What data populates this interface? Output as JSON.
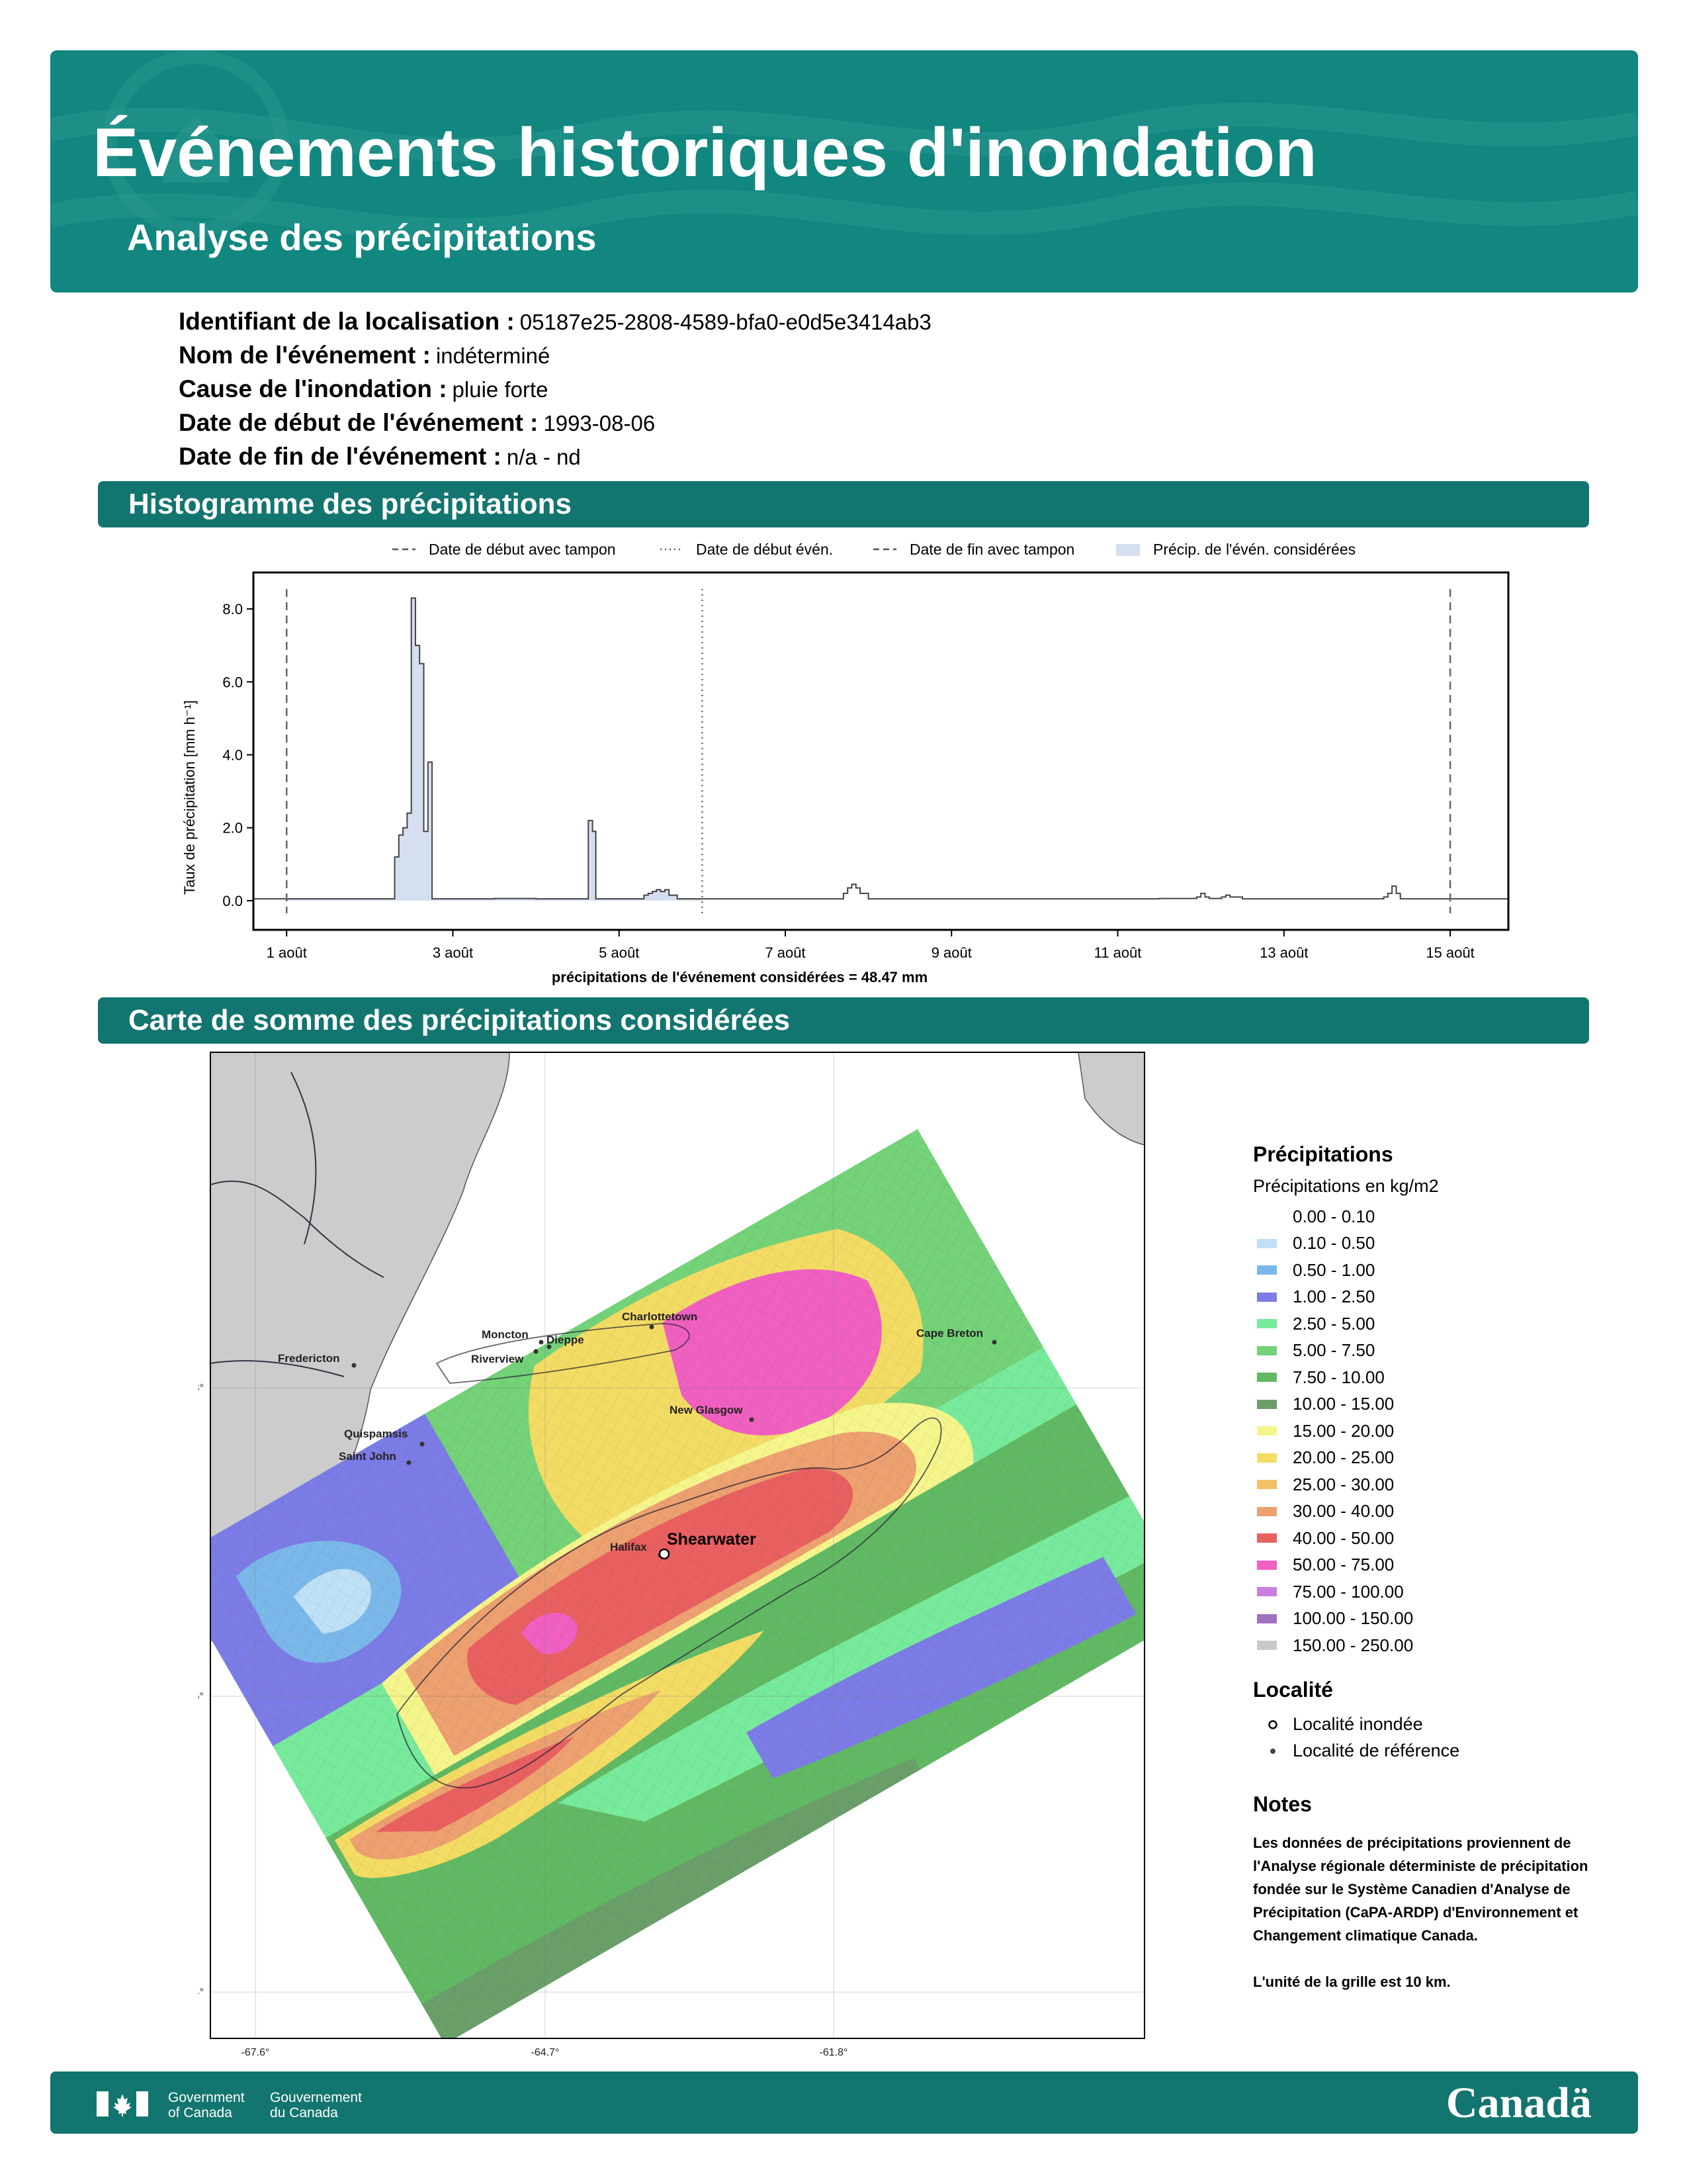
{
  "header": {
    "title": "Événements historiques d'inondation",
    "subtitle": "Analyse des précipitations"
  },
  "info": [
    {
      "label": "Identifiant de la localisation :",
      "value": "05187e25-2808-4589-bfa0-e0d5e3414ab3"
    },
    {
      "label": "Nom de l'événement :",
      "value": "indéterminé"
    },
    {
      "label": "Cause de l'inondation :",
      "value": "pluie forte"
    },
    {
      "label": "Date de début de l'événement :",
      "value": "1993-08-06"
    },
    {
      "label": "Date de fin de l'événement :",
      "value": "n/a - nd"
    }
  ],
  "sections": {
    "histogram": "Histogramme des précipitations",
    "map": "Carte de somme des précipitations considérées"
  },
  "chart_data": {
    "type": "area",
    "ylabel": "Taux de précipitation [mm h⁻¹]",
    "xlabel": "précipitations de l'événement considérées = 48.47 mm",
    "ylim": [
      -0.8,
      9.0
    ],
    "yticks": [
      "0.0",
      "2.0",
      "4.0",
      "6.0",
      "8.0"
    ],
    "xlim_days": [
      0.6,
      15.7
    ],
    "xticks": [
      {
        "day": 1,
        "label": "1 août"
      },
      {
        "day": 3,
        "label": "3 août"
      },
      {
        "day": 5,
        "label": "5 août"
      },
      {
        "day": 7,
        "label": "7 août"
      },
      {
        "day": 9,
        "label": "9 août"
      },
      {
        "day": 11,
        "label": "11 août"
      },
      {
        "day": 13,
        "label": "13 août"
      },
      {
        "day": 15,
        "label": "15 août"
      }
    ],
    "legend": [
      {
        "label": "Date de début avec tampon",
        "style": "dashed"
      },
      {
        "label": "Date de début évén.",
        "style": "dotted"
      },
      {
        "label": "Date de fin avec tampon",
        "style": "dashed"
      },
      {
        "label": "Précip. de l'évén. considérées",
        "style": "fill"
      }
    ],
    "legend_placement": "top",
    "vlines": [
      {
        "day": 1.0,
        "style": "dashed"
      },
      {
        "day": 6.0,
        "style": "dotted"
      },
      {
        "day": 15.0,
        "style": "dashed"
      }
    ],
    "series": [
      {
        "x_days": [
          0.6,
          1.0,
          2.0,
          2.25,
          2.3,
          2.35,
          2.4,
          2.45,
          2.5,
          2.55,
          2.6,
          2.65,
          2.7,
          2.75,
          3.0,
          3.5,
          4.0,
          4.5,
          4.63,
          4.68,
          4.72,
          4.8,
          5.2,
          5.3,
          5.35,
          5.4,
          5.45,
          5.5,
          5.55,
          5.6,
          5.7,
          6.0,
          6.5,
          7.0,
          7.5,
          7.7,
          7.75,
          7.8,
          7.85,
          7.9,
          8.0,
          8.5,
          9.0,
          10.0,
          11.0,
          11.5,
          11.95,
          12.0,
          12.05,
          12.1,
          12.25,
          12.3,
          12.35,
          12.5,
          13.0,
          13.5,
          14.0,
          14.2,
          14.25,
          14.3,
          14.35,
          14.4,
          15.0,
          15.7
        ],
        "values": [
          0.05,
          0.05,
          0.05,
          0.05,
          1.2,
          1.8,
          2.0,
          2.4,
          8.3,
          7.0,
          6.5,
          1.9,
          3.8,
          0.05,
          0.05,
          0.06,
          0.05,
          0.05,
          2.2,
          1.9,
          0.05,
          0.05,
          0.05,
          0.15,
          0.2,
          0.25,
          0.3,
          0.25,
          0.3,
          0.15,
          0.05,
          0.05,
          0.05,
          0.05,
          0.05,
          0.2,
          0.35,
          0.45,
          0.35,
          0.2,
          0.05,
          0.05,
          0.05,
          0.05,
          0.05,
          0.06,
          0.1,
          0.2,
          0.1,
          0.06,
          0.1,
          0.15,
          0.1,
          0.05,
          0.05,
          0.05,
          0.05,
          0.1,
          0.2,
          0.4,
          0.2,
          0.05,
          0.05,
          0.05
        ],
        "considered_range_days": [
          1.0,
          6.0
        ]
      }
    ]
  },
  "map": {
    "lat_labels": [
      {
        "label": "+45.8°",
        "y": 45.8
      },
      {
        "label": "+43.6°",
        "y": 43.6
      },
      {
        "label": "+41.4°",
        "y": 41.4
      }
    ],
    "lon_labels": [
      {
        "label": "-67.6°",
        "x": -67.6
      },
      {
        "label": "-64.7°",
        "x": -64.7
      },
      {
        "label": "-61.8°",
        "x": -61.8
      }
    ],
    "places": [
      {
        "name": "Fredericton"
      },
      {
        "name": "Moncton"
      },
      {
        "name": "Dieppe"
      },
      {
        "name": "Riverview"
      },
      {
        "name": "Charlottetown"
      },
      {
        "name": "Cape Breton"
      },
      {
        "name": "New Glasgow"
      },
      {
        "name": "Quispamsis"
      },
      {
        "name": "Saint John"
      },
      {
        "name": "Halifax"
      }
    ],
    "flooded_place": "Shearwater"
  },
  "legend": {
    "title": "Précipitations",
    "subtitle": "Précipitations en kg/m2",
    "classes": [
      {
        "label": "0.00 - 0.10",
        "color": "#ffffff"
      },
      {
        "label": "0.10 - 0.50",
        "color": "#bfe0f5"
      },
      {
        "label": "0.50 - 1.00",
        "color": "#7ab8ea"
      },
      {
        "label": "1.00 - 2.50",
        "color": "#7c7ce6"
      },
      {
        "label": "2.50 - 5.00",
        "color": "#78ea9c"
      },
      {
        "label": "5.00 - 7.50",
        "color": "#74d278"
      },
      {
        "label": "7.50 - 10.00",
        "color": "#62b964"
      },
      {
        "label": "10.00 - 15.00",
        "color": "#6a9f6a"
      },
      {
        "label": "15.00 - 20.00",
        "color": "#f5f58c"
      },
      {
        "label": "20.00 - 25.00",
        "color": "#f3dc64"
      },
      {
        "label": "25.00 - 30.00",
        "color": "#f3c064"
      },
      {
        "label": "30.00 - 40.00",
        "color": "#eda070"
      },
      {
        "label": "40.00 - 50.00",
        "color": "#e96060"
      },
      {
        "label": "50.00 - 75.00",
        "color": "#f060c0"
      },
      {
        "label": "75.00 - 100.00",
        "color": "#c87ee0"
      },
      {
        "label": "100.00 - 150.00",
        "color": "#a070c0"
      },
      {
        "label": "150.00 - 250.00",
        "color": "#c8c8c8"
      }
    ],
    "locality_title": "Localité",
    "locality_items": [
      "Localité inondée",
      "Localité de référence"
    ],
    "notes_title": "Notes",
    "notes": [
      "Les données de précipitations proviennent de l'Analyse régionale déterministe de précipitation fondée sur le Système Canadien d'Analyse de Précipitation (CaPA-ARDP) d'Environnement et Changement climatique Canada.",
      "L'unité de la grille est 10 km."
    ]
  },
  "footer": {
    "gov_en_1": "Government",
    "gov_en_2": "of Canada",
    "gov_fr_1": "Gouvernement",
    "gov_fr_2": "du Canada",
    "wordmark": "Canadä"
  },
  "colors": {
    "banner": "#11877f",
    "bar": "#13756f",
    "fill": "#d6dff0"
  }
}
